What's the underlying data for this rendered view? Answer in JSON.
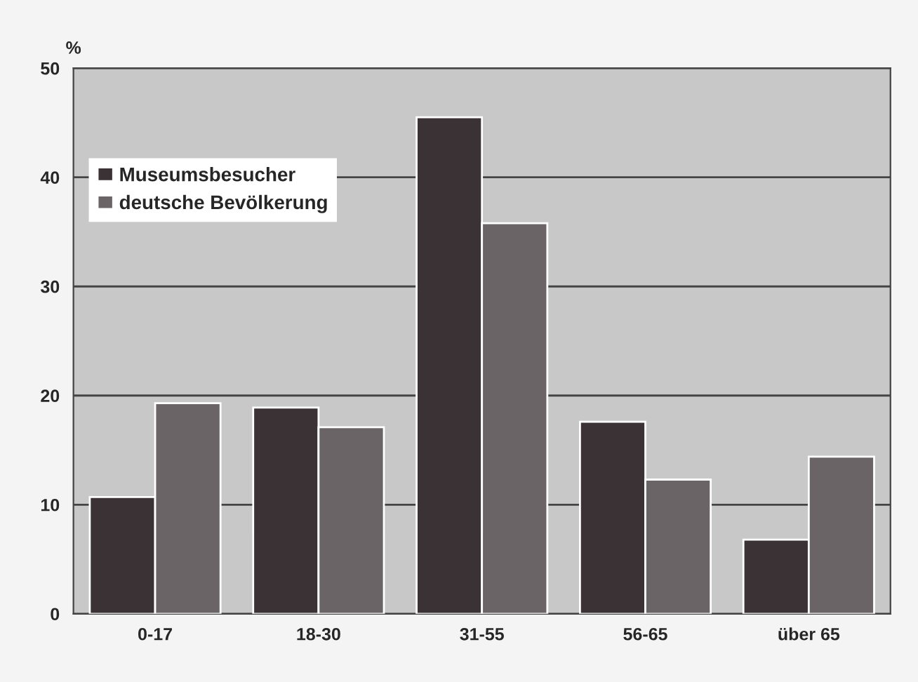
{
  "chart_data": {
    "type": "bar",
    "ylabel": "%",
    "categories": [
      "0-17",
      "18-30",
      "31-55",
      "56-65",
      "über 65"
    ],
    "series": [
      {
        "name": "Museumsbesucher",
        "color": "#3a3234",
        "values": [
          10.7,
          18.9,
          45.5,
          17.6,
          6.8
        ]
      },
      {
        "name": "deutsche Bevölkerung",
        "color": "#6a6466",
        "values": [
          19.3,
          17.1,
          35.8,
          12.3,
          14.4
        ]
      }
    ],
    "ylim": [
      0,
      50
    ],
    "yticks": [
      0,
      10,
      20,
      30,
      40,
      50
    ],
    "grid": "y",
    "legend": "top left"
  }
}
